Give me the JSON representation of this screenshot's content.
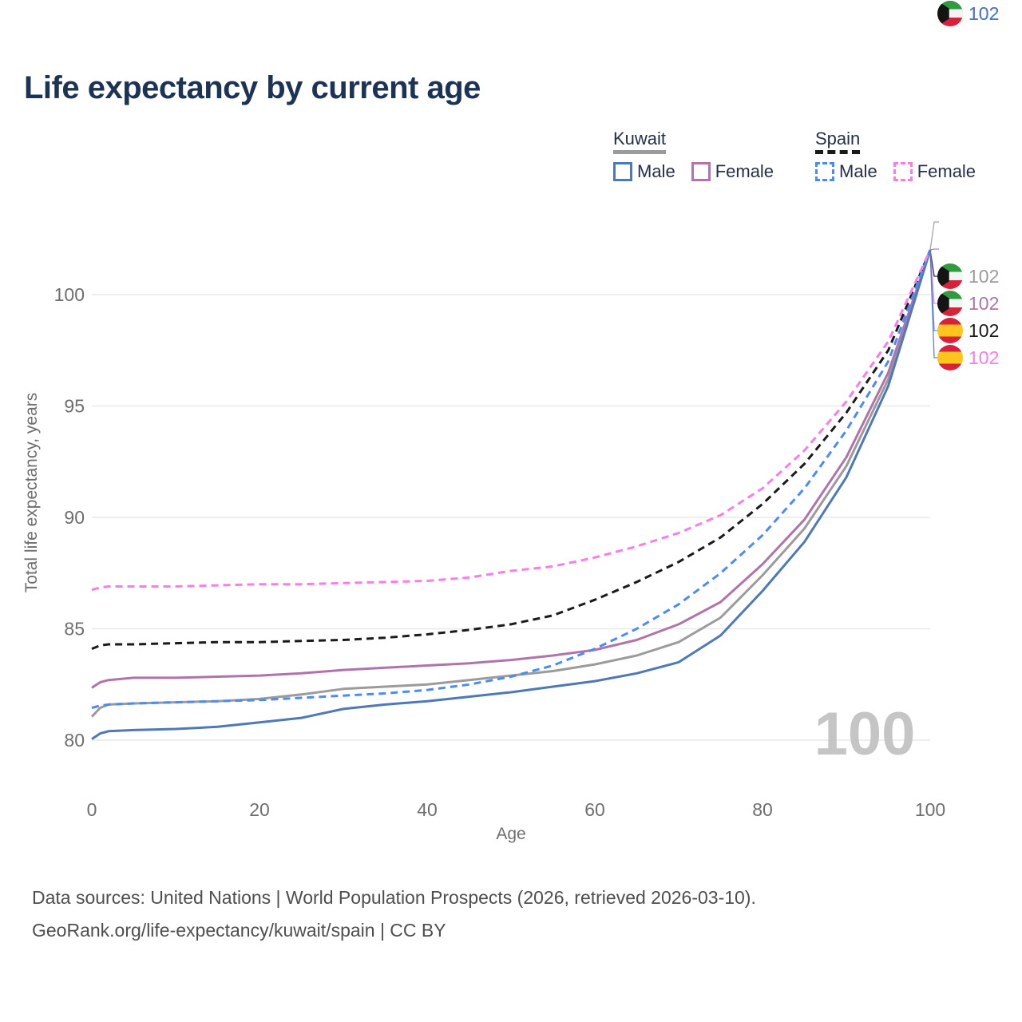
{
  "header": {
    "title": "Life expectancy by current age"
  },
  "legend": {
    "groups": [
      {
        "id": "kuwait",
        "label": "Kuwait",
        "underline_color": "#9b9b9b",
        "underline_dash": false,
        "items": [
          {
            "label": "Male",
            "series": "kuwait_male"
          },
          {
            "label": "Female",
            "series": "kuwait_female"
          }
        ]
      },
      {
        "id": "spain",
        "label": "Spain",
        "underline_color": "#1a1a1a",
        "underline_dash": true,
        "items": [
          {
            "label": "Male",
            "series": "spain_male"
          },
          {
            "label": "Female",
            "series": "spain_female"
          }
        ]
      }
    ]
  },
  "chart_data": {
    "type": "line",
    "title": "Life expectancy by current age",
    "xlabel": "Age",
    "ylabel": "Total life expectancy, years",
    "xlim": [
      0,
      100
    ],
    "ylim": [
      78,
      103
    ],
    "xticks": [
      0,
      20,
      40,
      60,
      80,
      100
    ],
    "yticks": [
      80,
      85,
      90,
      95,
      100
    ],
    "grid": "horizontal",
    "watermark": "100",
    "x": [
      0,
      1,
      2,
      5,
      10,
      15,
      20,
      25,
      30,
      35,
      40,
      45,
      50,
      55,
      60,
      65,
      70,
      75,
      80,
      85,
      90,
      95,
      100
    ],
    "series": [
      {
        "id": "kuwait_total",
        "name": "Kuwait Total",
        "country": "Kuwait",
        "sex": "total",
        "color": "#9b9b9b",
        "dash": false,
        "values": [
          81.05,
          81.45,
          81.6,
          81.65,
          81.7,
          81.75,
          81.85,
          82.05,
          82.3,
          82.4,
          82.5,
          82.7,
          82.9,
          83.1,
          83.4,
          83.8,
          84.4,
          85.5,
          87.4,
          89.5,
          92.3,
          96.2,
          102
        ]
      },
      {
        "id": "kuwait_female",
        "name": "Kuwait Female",
        "country": "Kuwait",
        "sex": "female",
        "color": "#b173ab",
        "dash": false,
        "values": [
          82.35,
          82.6,
          82.7,
          82.8,
          82.8,
          82.85,
          82.9,
          83.0,
          83.15,
          83.25,
          83.35,
          83.45,
          83.6,
          83.8,
          84.05,
          84.5,
          85.2,
          86.2,
          87.9,
          89.9,
          92.7,
          96.5,
          102
        ]
      },
      {
        "id": "kuwait_male",
        "name": "Kuwait Male",
        "country": "Kuwait",
        "sex": "male",
        "color": "#4e79b8",
        "dash": false,
        "values": [
          80.05,
          80.3,
          80.4,
          80.45,
          80.5,
          80.6,
          80.8,
          81.0,
          81.4,
          81.6,
          81.75,
          81.95,
          82.15,
          82.4,
          82.65,
          83.0,
          83.5,
          84.7,
          86.7,
          88.9,
          91.8,
          95.9,
          102
        ]
      },
      {
        "id": "spain_total",
        "name": "Spain Total",
        "country": "Spain",
        "sex": "total",
        "color": "#1a1a1a",
        "dash": true,
        "values": [
          84.1,
          84.25,
          84.3,
          84.3,
          84.35,
          84.4,
          84.4,
          84.45,
          84.5,
          84.6,
          84.75,
          84.95,
          85.2,
          85.6,
          86.3,
          87.1,
          88.0,
          89.1,
          90.6,
          92.4,
          94.7,
          97.5,
          102
        ]
      },
      {
        "id": "spain_male",
        "name": "Spain Male",
        "country": "Spain",
        "sex": "male",
        "color": "#4a8cf5",
        "dash": true,
        "values": [
          81.45,
          81.55,
          81.6,
          81.65,
          81.7,
          81.75,
          81.8,
          81.9,
          82.0,
          82.1,
          82.25,
          82.5,
          82.85,
          83.35,
          84.1,
          85.0,
          86.1,
          87.5,
          89.2,
          91.3,
          93.9,
          97.0,
          102
        ]
      },
      {
        "id": "spain_female",
        "name": "Spain Female",
        "country": "Spain",
        "sex": "female",
        "color": "#fb7ce8",
        "dash": true,
        "values": [
          86.75,
          86.85,
          86.9,
          86.9,
          86.9,
          86.95,
          87.0,
          87.0,
          87.05,
          87.1,
          87.15,
          87.3,
          87.6,
          87.8,
          88.2,
          88.7,
          89.3,
          90.1,
          91.3,
          93.0,
          95.2,
          97.9,
          102
        ]
      }
    ]
  },
  "end_labels": [
    {
      "value": "102",
      "country_code": "kw",
      "country": "Kuwait",
      "series": "kuwait_total"
    },
    {
      "value": "102",
      "country_code": "kw",
      "country": "Kuwait",
      "series": "kuwait_female"
    },
    {
      "value": "102",
      "country_code": "es",
      "country": "Spain",
      "series": "spain_total"
    },
    {
      "value": "102",
      "country_code": "es",
      "country": "Spain",
      "series": "spain_female"
    },
    {
      "value": "102",
      "country_code": "es",
      "country": "Spain",
      "series": "spain_male"
    },
    {
      "value": "102",
      "country_code": "kw",
      "country": "Kuwait",
      "series": "kuwait_male"
    }
  ],
  "footer": {
    "line1": "Data sources: United Nations | World Population Prospects (2026, retrieved 2026-03-10).",
    "line2": "GeoRank.org/life-expectancy/kuwait/spain | CC BY"
  }
}
